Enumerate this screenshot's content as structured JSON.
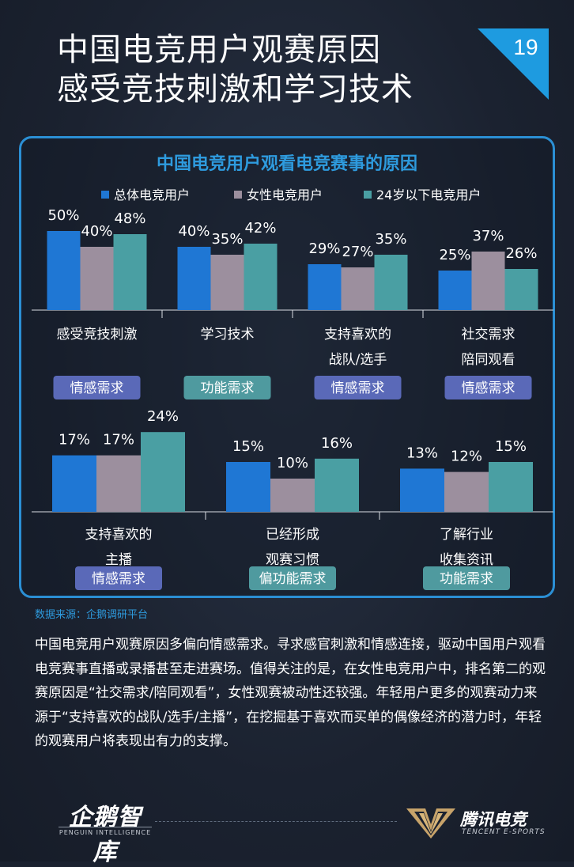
{
  "header": {
    "title_line1": "中国电竞用户观赛原因",
    "title_line2": "感受竞技刺激和学习技术",
    "page_number": "19"
  },
  "colors": {
    "total": "#1f77d4",
    "female": "#9c8f9e",
    "under24": "#4a9fa3",
    "accent": "#2b8fd4",
    "tag_emotion": "#5a69b8",
    "tag_function": "#4f9a9f"
  },
  "chart_data": {
    "type": "bar",
    "title": "中国电竞用户观看电竞赛事的原因",
    "unit": "%",
    "series": [
      {
        "name": "总体电竞用户"
      },
      {
        "name": "女性电竞用户"
      },
      {
        "name": "24岁以下电竞用户"
      }
    ],
    "groups": [
      {
        "label_lines": [
          "感受竞技刺激"
        ],
        "tag": "情感需求",
        "tag_type": "emotion",
        "values": [
          50,
          40,
          48
        ]
      },
      {
        "label_lines": [
          "学习技术"
        ],
        "tag": "功能需求",
        "tag_type": "function",
        "values": [
          40,
          35,
          42
        ]
      },
      {
        "label_lines": [
          "支持喜欢的",
          "战队/选手"
        ],
        "tag": "情感需求",
        "tag_type": "emotion",
        "values": [
          29,
          27,
          35
        ]
      },
      {
        "label_lines": [
          "社交需求",
          "陪同观看"
        ],
        "tag": "情感需求",
        "tag_type": "emotion",
        "values": [
          25,
          37,
          26
        ]
      },
      {
        "label_lines": [
          "支持喜欢的",
          "主播"
        ],
        "tag": "情感需求",
        "tag_type": "emotion",
        "values": [
          17,
          17,
          24
        ]
      },
      {
        "label_lines": [
          "已经形成",
          "观赛习惯"
        ],
        "tag": "偏功能需求",
        "tag_type": "function",
        "values": [
          15,
          10,
          16
        ]
      },
      {
        "label_lines": [
          "了解行业",
          "收集资讯"
        ],
        "tag": "功能需求",
        "tag_type": "function",
        "values": [
          13,
          12,
          15
        ]
      }
    ]
  },
  "source": "数据来源：企鹅调研平台",
  "body_text": "中国电竞用户观赛原因多偏向情感需求。寻求感官刺激和情感连接，驱动中国用户观看电竞赛事直播或录播甚至走进赛场。值得关注的是，在女性电竞用户中，排名第二的观赛原因是“社交需求/陪同观看”，女性观赛被动性还较强。年轻用户更多的观赛动力来源于“支持喜欢的战队/选手/主播”，在挖掘基于喜欢而买单的偶像经济的潜力时，年轻的观赛用户将表现出有力的支撑。",
  "footer": {
    "left_logo_main": "企鹅智库",
    "left_logo_sub": "PENGUIN INTELLIGENCE",
    "right_logo_main": "腾讯电竞",
    "right_logo_sub": "TENCENT E-SPORTS"
  }
}
